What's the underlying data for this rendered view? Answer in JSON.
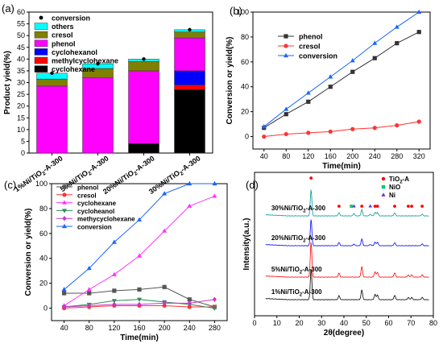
{
  "panels": [
    {
      "label": "(a)",
      "chart_data": {
        "type": "bar",
        "stacked": true,
        "categories": [
          "1%Ni/TiO2-A-300",
          "5%Ni/TiO2-A-300",
          "20%Ni/TiO2-A-300",
          "30%Ni/TiO2-A-300"
        ],
        "category_labels": [
          {
            "pre": "1%Ni/TiO",
            "sub": "2",
            "post": "-A-300"
          },
          {
            "pre": "5%Ni/TiO",
            "sub": "2",
            "post": "-A-300"
          },
          {
            "pre": "20%Ni/TiO",
            "sub": "2",
            "post": "-A-300"
          },
          {
            "pre": "30%Ni/TiO",
            "sub": "2",
            "post": "-A-300"
          }
        ],
        "series": [
          {
            "name": "cyclohexane",
            "color": "#000000",
            "values": [
              0,
              0,
              4,
              27
            ]
          },
          {
            "name": "methylcyclohexane",
            "color": "#ff0000",
            "values": [
              0,
              0,
              0,
              2
            ]
          },
          {
            "name": "cyclohexanol",
            "color": "#0000ff",
            "values": [
              0,
              0,
              0,
              6
            ]
          },
          {
            "name": "phenol",
            "color": "#ff00ff",
            "values": [
              28.5,
              32,
              31,
              14
            ]
          },
          {
            "name": "cresol",
            "color": "#808000",
            "values": [
              3,
              4,
              4,
              2.5
            ]
          },
          {
            "name": "others",
            "color": "#00ffff",
            "values": [
              2.5,
              2,
              1,
              1
            ]
          }
        ],
        "conversion": {
          "name": "conversion",
          "values": [
            34,
            38,
            40,
            52.5
          ]
        },
        "legend_order": [
          "conversion",
          "others",
          "cresol",
          "phenol",
          "cyclohexanol",
          "methylcyclohexane",
          "cyclohexane"
        ],
        "ylabel": "Product yield(%)",
        "ylim": [
          0,
          60
        ],
        "yticks": [
          0,
          5,
          10,
          15,
          20,
          25,
          30,
          35,
          40,
          45,
          50,
          55,
          60
        ]
      }
    },
    {
      "label": "(b)",
      "chart_data": {
        "type": "line",
        "x": [
          40,
          80,
          120,
          160,
          200,
          240,
          280,
          320
        ],
        "series": [
          {
            "name": "phenol",
            "color": "#333333",
            "marker": "square",
            "values": [
              7,
              18,
              28,
              40,
              52,
              63,
              75,
              84
            ]
          },
          {
            "name": "cresol",
            "color": "#ff3333",
            "marker": "circle",
            "values": [
              0,
              2,
              3,
              4,
              6,
              7,
              9,
              12
            ]
          },
          {
            "name": "conversion",
            "color": "#1a66ff",
            "marker": "triangle",
            "values": [
              8,
              22,
              35,
              48,
              61,
              75,
              88,
              100
            ]
          }
        ],
        "xlabel": "Time(min)",
        "ylabel": "Conversion or yield(%)",
        "xlim": [
          20,
          340
        ],
        "ylim": [
          -10,
          100
        ],
        "xticks": [
          40,
          80,
          120,
          160,
          200,
          240,
          280,
          320
        ],
        "yticks": [
          0,
          20,
          40,
          60,
          80,
          100
        ]
      }
    },
    {
      "label": "(c)",
      "chart_data": {
        "type": "line",
        "x": [
          40,
          80,
          120,
          160,
          200,
          240,
          280
        ],
        "series": [
          {
            "name": "phenol",
            "color": "#555555",
            "marker": "square",
            "values": [
              12,
              12,
              14,
              15,
              17,
              7,
              1
            ]
          },
          {
            "name": "cresol",
            "color": "#ff3333",
            "marker": "circle",
            "values": [
              0,
              1,
              2,
              2,
              2,
              1,
              1
            ]
          },
          {
            "name": "cyclohexane",
            "color": "#ff33ff",
            "marker": "triangle",
            "values": [
              2,
              15,
              27,
              42,
              62,
              82,
              90
            ]
          },
          {
            "name": "cycloheanol",
            "color": "#2e8b57",
            "marker": "triangle-down",
            "values": [
              1,
              3,
              6,
              7,
              5,
              3,
              0
            ]
          },
          {
            "name": "methycyclohexane",
            "color": "#cc33cc",
            "marker": "diamond",
            "values": [
              1,
              2,
              3,
              3,
              4,
              4,
              7
            ]
          },
          {
            "name": "conversion",
            "color": "#1a66ff",
            "marker": "triangle",
            "values": [
              15,
              32,
              53,
              71,
              92,
              100,
              100
            ]
          }
        ],
        "xlabel": "Time(min)",
        "ylabel": "Conversion or yield(%)",
        "xlim": [
          20,
          300
        ],
        "ylim": [
          -10,
          100
        ],
        "xticks": [
          40,
          80,
          120,
          160,
          200,
          240,
          280
        ],
        "yticks": [
          0,
          20,
          40,
          60,
          80,
          100
        ]
      }
    },
    {
      "label": "(d)",
      "chart_data": {
        "type": "line",
        "xlabel": "2θ(degree)",
        "ylabel": "Intensity(a.u.)",
        "xlim": [
          0,
          80
        ],
        "xticks": [
          0,
          10,
          20,
          30,
          40,
          50,
          60,
          70,
          80
        ],
        "series": [
          {
            "name": "1%Ni/TiO2-A-300",
            "color": "#000000",
            "peaks": [
              [
                25.3,
                70
              ],
              [
                37.8,
                9
              ],
              [
                48,
                22
              ],
              [
                53.9,
                12
              ],
              [
                55,
                11
              ],
              [
                62.7,
                10
              ],
              [
                68.8,
                5
              ],
              [
                70.3,
                5
              ],
              [
                75,
                5
              ]
            ]
          },
          {
            "name": "5%Ni/TiO2-A-300",
            "color": "#ff0000",
            "peaks": [
              [
                25.3,
                80
              ],
              [
                37.8,
                9
              ],
              [
                48,
                24
              ],
              [
                53.9,
                12
              ],
              [
                55,
                11
              ],
              [
                62.7,
                10
              ],
              [
                68.8,
                5
              ],
              [
                70.3,
                5
              ],
              [
                75,
                5
              ]
            ]
          },
          {
            "name": "20%Ni/TiO2-A-300",
            "color": "#0000ff",
            "peaks": [
              [
                25.3,
                60
              ],
              [
                37.8,
                7
              ],
              [
                44.5,
                4
              ],
              [
                48,
                15
              ],
              [
                51.8,
                3
              ],
              [
                53.9,
                8
              ],
              [
                55,
                8
              ],
              [
                62.7,
                7
              ],
              [
                75,
                4
              ]
            ]
          },
          {
            "name": "30%Ni/TiO2-A-300",
            "color": "#009999",
            "peaks": [
              [
                25.3,
                60
              ],
              [
                37.8,
                7
              ],
              [
                44.5,
                6
              ],
              [
                48,
                14
              ],
              [
                51.8,
                4
              ],
              [
                53.9,
                8
              ],
              [
                55,
                8
              ],
              [
                62.7,
                7
              ],
              [
                75,
                4
              ]
            ]
          }
        ],
        "series_labels": [
          {
            "pre": "1%Ni/TiO",
            "sub": "2",
            "post": "-A-300"
          },
          {
            "pre": "5%Ni/TiO",
            "sub": "2",
            "post": "-A-300"
          },
          {
            "pre": "20%Ni/TiO",
            "sub": "2",
            "post": "-A-300"
          },
          {
            "pre": "30%Ni/TiO",
            "sub": "2",
            "post": "-A-300"
          }
        ],
        "legend": [
          {
            "pre": "TiO",
            "sub": "2",
            "post": "-A",
            "color": "#ff0000",
            "marker": "circle"
          },
          {
            "pre": "NiO",
            "sub": "",
            "post": "",
            "color": "#00cc66",
            "marker": "square"
          },
          {
            "pre": "Ni",
            "sub": "",
            "post": "",
            "color": "#6633cc",
            "marker": "triangle"
          }
        ],
        "phase_markers": [
          {
            "phase": "TiO2-A",
            "color": "#ff0000",
            "marker": "circle",
            "positions": [
              25.3,
              37.8,
              48,
              53.9,
              55,
              62.7,
              68.8,
              70.3,
              75
            ]
          },
          {
            "phase": "NiO",
            "color": "#00cc66",
            "marker": "square",
            "positions": [
              43.3
            ]
          },
          {
            "phase": "Ni",
            "color": "#6633cc",
            "marker": "triangle",
            "positions": [
              44.5,
              51.8
            ]
          }
        ]
      }
    }
  ]
}
